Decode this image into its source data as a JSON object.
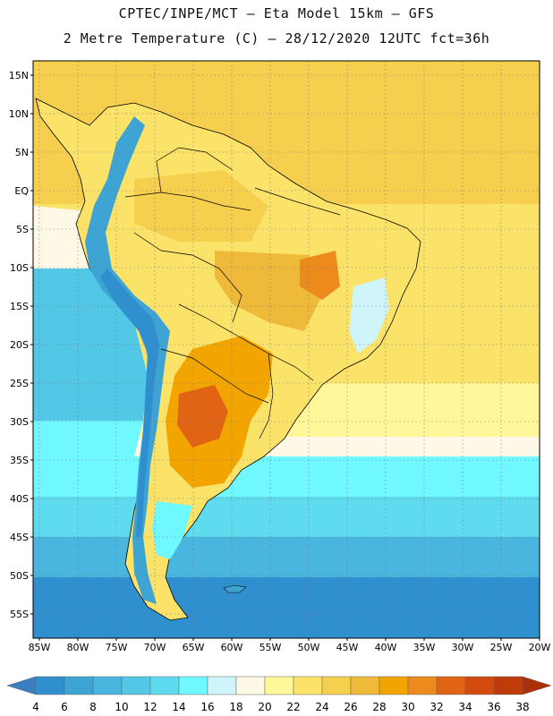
{
  "header": {
    "line1": "CPTEC/INPE/MCT –  Eta Model 15km – GFS",
    "line2": "2 Metre Temperature (C) – 28/12/2020 12UTC fct=36h"
  },
  "map": {
    "variable": "2 Metre Temperature",
    "units": "C",
    "lat_labels": [
      "15N",
      "10N",
      "5N",
      "EQ",
      "5S",
      "10S",
      "15S",
      "20S",
      "25S",
      "30S",
      "35S",
      "40S",
      "45S",
      "50S",
      "55S"
    ],
    "lon_labels": [
      "85W",
      "80W",
      "75W",
      "70W",
      "65W",
      "60W",
      "55W",
      "50W",
      "45W",
      "40W",
      "35W",
      "30W",
      "25W",
      "20W"
    ]
  },
  "colorbar": {
    "labels": [
      "4",
      "6",
      "8",
      "10",
      "12",
      "14",
      "16",
      "18",
      "20",
      "22",
      "24",
      "26",
      "28",
      "30",
      "32",
      "34",
      "36",
      "38"
    ],
    "colors": [
      "#3a7ec0",
      "#2f8fcf",
      "#3ea4d4",
      "#48b6df",
      "#52c7e6",
      "#5fdbef",
      "#6ff8ff",
      "#cff5fa",
      "#fef8e6",
      "#fff799",
      "#fbe36a",
      "#f7cf4f",
      "#efba3a",
      "#f2a500",
      "#ec8a1c",
      "#e06414",
      "#d24b0c",
      "#bf3c0a",
      "#ab2f08"
    ]
  }
}
